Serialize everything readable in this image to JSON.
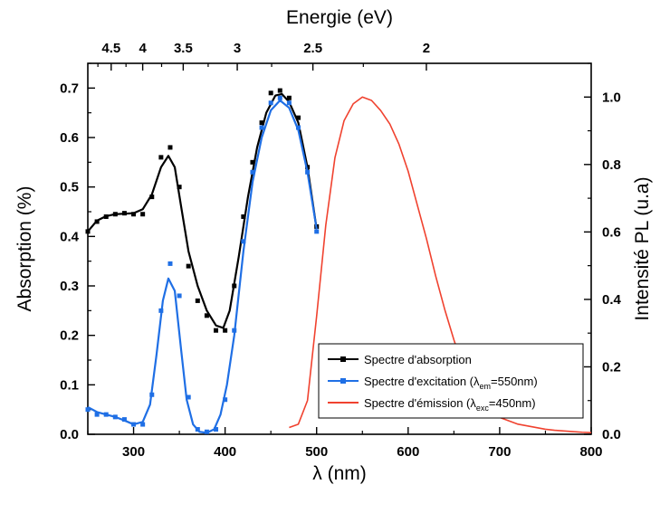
{
  "chart_data": {
    "type": "line",
    "xlabel": "λ (nm)",
    "x_top_label": "Energie (eV)",
    "ylabel_left": "Absorption (%)",
    "ylabel_right": "Intensité PL (u.a)",
    "xlim": [
      250,
      800
    ],
    "ylim_left": [
      0,
      0.75
    ],
    "ylim_right": [
      0,
      1.1
    ],
    "x_ticks": [
      "300",
      "400",
      "500",
      "600",
      "700",
      "800"
    ],
    "x_top_ticks": [
      "4.5",
      "4",
      "3.5",
      "3",
      "2.5",
      "2"
    ],
    "x_top_tick_values_ev": [
      4.5,
      4,
      3.5,
      3,
      2.5,
      2
    ],
    "y_left_ticks": [
      "0.0",
      "0.1",
      "0.2",
      "0.3",
      "0.4",
      "0.5",
      "0.6",
      "0.7"
    ],
    "y_right_ticks": [
      "0.0",
      "0.2",
      "0.4",
      "0.6",
      "0.8",
      "1.0"
    ],
    "grid": false,
    "legend_position": "bottom-right",
    "series": [
      {
        "name": "Spectre d'absorption",
        "axis": "left",
        "color": "#000000",
        "marker": "square",
        "points": [
          [
            250,
            0.41
          ],
          [
            260,
            0.43
          ],
          [
            270,
            0.44
          ],
          [
            280,
            0.445
          ],
          [
            290,
            0.447
          ],
          [
            300,
            0.445
          ],
          [
            310,
            0.445
          ],
          [
            320,
            0.48
          ],
          [
            330,
            0.56
          ],
          [
            340,
            0.58
          ],
          [
            350,
            0.5
          ],
          [
            360,
            0.34
          ],
          [
            370,
            0.27
          ],
          [
            380,
            0.24
          ],
          [
            390,
            0.21
          ],
          [
            400,
            0.21
          ],
          [
            410,
            0.3
          ],
          [
            420,
            0.44
          ],
          [
            430,
            0.55
          ],
          [
            440,
            0.63
          ],
          [
            450,
            0.69
          ],
          [
            460,
            0.695
          ],
          [
            470,
            0.68
          ],
          [
            480,
            0.64
          ],
          [
            490,
            0.54
          ],
          [
            500,
            0.42
          ]
        ],
        "fit": [
          [
            250,
            0.41
          ],
          [
            260,
            0.432
          ],
          [
            270,
            0.441
          ],
          [
            280,
            0.445
          ],
          [
            290,
            0.446
          ],
          [
            300,
            0.447
          ],
          [
            310,
            0.455
          ],
          [
            320,
            0.485
          ],
          [
            330,
            0.54
          ],
          [
            338,
            0.563
          ],
          [
            345,
            0.54
          ],
          [
            352,
            0.46
          ],
          [
            360,
            0.37
          ],
          [
            370,
            0.3
          ],
          [
            380,
            0.25
          ],
          [
            390,
            0.22
          ],
          [
            398,
            0.215
          ],
          [
            405,
            0.25
          ],
          [
            415,
            0.36
          ],
          [
            425,
            0.48
          ],
          [
            435,
            0.58
          ],
          [
            445,
            0.65
          ],
          [
            455,
            0.685
          ],
          [
            462,
            0.688
          ],
          [
            470,
            0.672
          ],
          [
            480,
            0.63
          ],
          [
            490,
            0.54
          ],
          [
            500,
            0.415
          ]
        ]
      },
      {
        "name": "Spectre d'excitation (λem=550nm)",
        "legend_main": "Spectre d'excitation (λ",
        "legend_sub": "em",
        "legend_tail": "=550nm)",
        "axis": "left",
        "color": "#1f6fe5",
        "marker": "square",
        "points": [
          [
            250,
            0.05
          ],
          [
            260,
            0.04
          ],
          [
            270,
            0.04
          ],
          [
            280,
            0.035
          ],
          [
            290,
            0.03
          ],
          [
            300,
            0.02
          ],
          [
            310,
            0.02
          ],
          [
            320,
            0.08
          ],
          [
            330,
            0.25
          ],
          [
            340,
            0.345
          ],
          [
            350,
            0.28
          ],
          [
            360,
            0.075
          ],
          [
            370,
            0.01
          ],
          [
            380,
            0.005
          ],
          [
            390,
            0.01
          ],
          [
            400,
            0.07
          ],
          [
            410,
            0.21
          ],
          [
            420,
            0.39
          ],
          [
            430,
            0.53
          ],
          [
            440,
            0.62
          ],
          [
            450,
            0.67
          ],
          [
            460,
            0.68
          ],
          [
            470,
            0.67
          ],
          [
            480,
            0.62
          ],
          [
            490,
            0.53
          ],
          [
            500,
            0.41
          ]
        ],
        "fit": [
          [
            250,
            0.055
          ],
          [
            260,
            0.045
          ],
          [
            270,
            0.04
          ],
          [
            280,
            0.035
          ],
          [
            290,
            0.028
          ],
          [
            300,
            0.02
          ],
          [
            310,
            0.025
          ],
          [
            318,
            0.06
          ],
          [
            325,
            0.16
          ],
          [
            332,
            0.27
          ],
          [
            338,
            0.315
          ],
          [
            345,
            0.29
          ],
          [
            352,
            0.17
          ],
          [
            358,
            0.07
          ],
          [
            365,
            0.02
          ],
          [
            372,
            0.005
          ],
          [
            380,
            0.003
          ],
          [
            388,
            0.01
          ],
          [
            395,
            0.04
          ],
          [
            402,
            0.1
          ],
          [
            410,
            0.2
          ],
          [
            420,
            0.37
          ],
          [
            430,
            0.51
          ],
          [
            440,
            0.6
          ],
          [
            450,
            0.655
          ],
          [
            460,
            0.675
          ],
          [
            470,
            0.66
          ],
          [
            480,
            0.615
          ],
          [
            490,
            0.53
          ],
          [
            500,
            0.415
          ]
        ]
      },
      {
        "name": "Spectre d'émission (λexc=450nm)",
        "legend_main": "Spectre d'émission (λ",
        "legend_sub": "exc",
        "legend_tail": "=450nm)",
        "axis": "right",
        "color": "#f0422f",
        "marker": "none",
        "points": [
          [
            470,
            0.02
          ],
          [
            480,
            0.03
          ],
          [
            490,
            0.1
          ],
          [
            500,
            0.35
          ],
          [
            510,
            0.62
          ],
          [
            520,
            0.82
          ],
          [
            530,
            0.93
          ],
          [
            540,
            0.98
          ],
          [
            550,
            1.0
          ],
          [
            560,
            0.99
          ],
          [
            570,
            0.96
          ],
          [
            580,
            0.92
          ],
          [
            590,
            0.86
          ],
          [
            600,
            0.78
          ],
          [
            610,
            0.68
          ],
          [
            620,
            0.58
          ],
          [
            630,
            0.47
          ],
          [
            640,
            0.37
          ],
          [
            650,
            0.28
          ],
          [
            660,
            0.2
          ],
          [
            670,
            0.14
          ],
          [
            680,
            0.1
          ],
          [
            690,
            0.07
          ],
          [
            700,
            0.05
          ],
          [
            710,
            0.04
          ],
          [
            720,
            0.03
          ],
          [
            730,
            0.025
          ],
          [
            740,
            0.02
          ],
          [
            750,
            0.015
          ],
          [
            760,
            0.012
          ],
          [
            770,
            0.01
          ],
          [
            780,
            0.008
          ],
          [
            790,
            0.006
          ],
          [
            800,
            0.005
          ]
        ]
      }
    ]
  }
}
